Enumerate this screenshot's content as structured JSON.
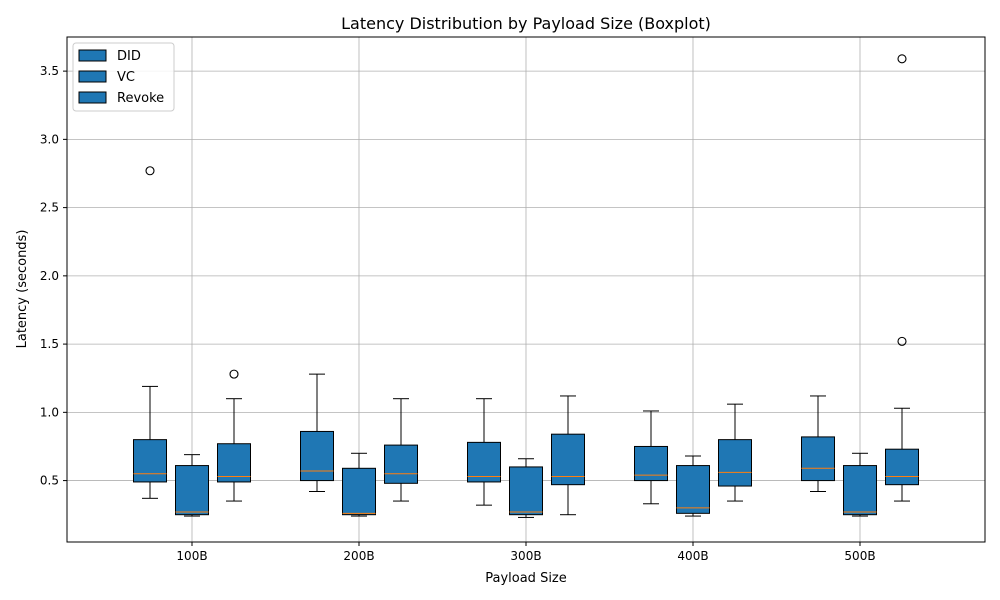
{
  "chart_data": {
    "type": "boxplot",
    "title": "Latency Distribution by Payload Size (Boxplot)",
    "xlabel": "Payload Size",
    "ylabel": "Latency (seconds)",
    "categories": [
      "100B",
      "200B",
      "300B",
      "400B",
      "500B"
    ],
    "ylim": [
      0.05,
      3.75
    ],
    "yticks": [
      0.5,
      1.0,
      1.5,
      2.0,
      2.5,
      3.0,
      3.5
    ],
    "ytick_labels": [
      "0.5",
      "1.0",
      "1.5",
      "2.0",
      "2.5",
      "3.0",
      "3.5"
    ],
    "grid": true,
    "legend_position": "top-left",
    "colors": {
      "box_fill": "#1f77b4",
      "median": "#ff7f0e",
      "edge": "#000000",
      "grid": "#b0b0b0"
    },
    "series": [
      {
        "name": "DID",
        "stats": [
          {
            "whislo": 0.37,
            "q1": 0.49,
            "med": 0.55,
            "q3": 0.8,
            "whishi": 1.19,
            "fliers": [
              2.77
            ]
          },
          {
            "whislo": 0.42,
            "q1": 0.5,
            "med": 0.57,
            "q3": 0.86,
            "whishi": 1.28,
            "fliers": []
          },
          {
            "whislo": 0.32,
            "q1": 0.49,
            "med": 0.53,
            "q3": 0.78,
            "whishi": 1.1,
            "fliers": []
          },
          {
            "whislo": 0.33,
            "q1": 0.5,
            "med": 0.54,
            "q3": 0.75,
            "whishi": 1.01,
            "fliers": []
          },
          {
            "whislo": 0.42,
            "q1": 0.5,
            "med": 0.59,
            "q3": 0.82,
            "whishi": 1.12,
            "fliers": []
          }
        ]
      },
      {
        "name": "VC",
        "stats": [
          {
            "whislo": 0.24,
            "q1": 0.25,
            "med": 0.27,
            "q3": 0.61,
            "whishi": 0.69,
            "fliers": []
          },
          {
            "whislo": 0.24,
            "q1": 0.25,
            "med": 0.26,
            "q3": 0.59,
            "whishi": 0.7,
            "fliers": []
          },
          {
            "whislo": 0.23,
            "q1": 0.25,
            "med": 0.27,
            "q3": 0.6,
            "whishi": 0.66,
            "fliers": []
          },
          {
            "whislo": 0.24,
            "q1": 0.26,
            "med": 0.3,
            "q3": 0.61,
            "whishi": 0.68,
            "fliers": []
          },
          {
            "whislo": 0.24,
            "q1": 0.25,
            "med": 0.27,
            "q3": 0.61,
            "whishi": 0.7,
            "fliers": []
          }
        ]
      },
      {
        "name": "Revoke",
        "stats": [
          {
            "whislo": 0.35,
            "q1": 0.49,
            "med": 0.53,
            "q3": 0.77,
            "whishi": 1.1,
            "fliers": [
              1.28
            ]
          },
          {
            "whislo": 0.35,
            "q1": 0.48,
            "med": 0.55,
            "q3": 0.76,
            "whishi": 1.1,
            "fliers": []
          },
          {
            "whislo": 0.25,
            "q1": 0.47,
            "med": 0.53,
            "q3": 0.84,
            "whishi": 1.12,
            "fliers": []
          },
          {
            "whislo": 0.35,
            "q1": 0.46,
            "med": 0.56,
            "q3": 0.8,
            "whishi": 1.06,
            "fliers": []
          },
          {
            "whislo": 0.35,
            "q1": 0.47,
            "med": 0.53,
            "q3": 0.73,
            "whishi": 1.03,
            "fliers": [
              1.52,
              3.59
            ]
          }
        ]
      }
    ]
  }
}
